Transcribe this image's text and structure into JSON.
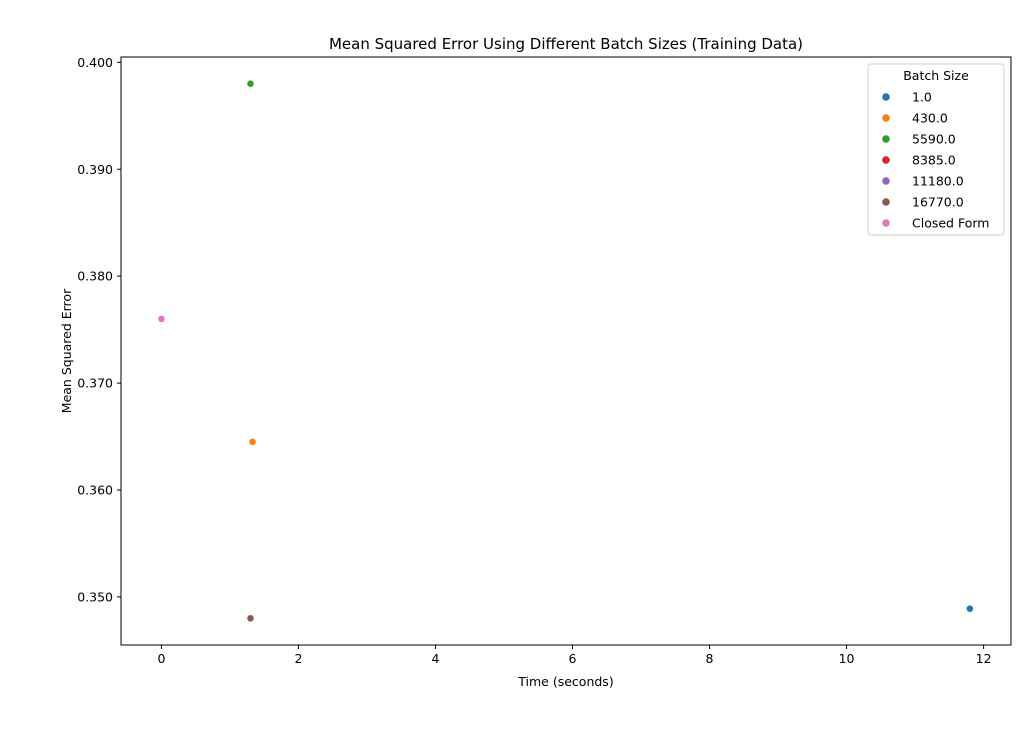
{
  "chart_data": {
    "type": "scatter",
    "title": "Mean Squared Error Using Different Batch Sizes (Training Data)",
    "xlabel": "Time (seconds)",
    "ylabel": "Mean Squared Error",
    "xlim": [
      -0.59,
      12.4
    ],
    "ylim": [
      0.3455,
      0.4005
    ],
    "xticks": [
      0,
      2,
      4,
      6,
      8,
      10,
      12
    ],
    "xtick_labels": [
      "0",
      "2",
      "4",
      "6",
      "8",
      "10",
      "12"
    ],
    "yticks": [
      0.35,
      0.36,
      0.37,
      0.38,
      0.39,
      0.4
    ],
    "ytick_labels": [
      "0.350",
      "0.360",
      "0.370",
      "0.380",
      "0.390",
      "0.400"
    ],
    "grid": false,
    "legend": {
      "title": "Batch Size",
      "placement": "top-right"
    },
    "series": [
      {
        "name": "1.0",
        "color": "#1f77b4",
        "points": [
          {
            "x": 11.8,
            "y": 0.3489
          }
        ]
      },
      {
        "name": "430.0",
        "color": "#ff7f0e",
        "points": [
          {
            "x": 1.33,
            "y": 0.3645
          }
        ]
      },
      {
        "name": "5590.0",
        "color": "#2ca02c",
        "points": [
          {
            "x": 1.3,
            "y": 0.398
          }
        ]
      },
      {
        "name": "8385.0",
        "color": "#d62728",
        "points": [
          {
            "x": 1.3,
            "y": 0.348
          }
        ]
      },
      {
        "name": "11180.0",
        "color": "#9467bd",
        "points": [
          {
            "x": 1.3,
            "y": 0.348
          }
        ]
      },
      {
        "name": "16770.0",
        "color": "#8c564b",
        "points": [
          {
            "x": 1.3,
            "y": 0.348
          }
        ]
      },
      {
        "name": "Closed Form",
        "color": "#e377c2",
        "points": [
          {
            "x": 0.0,
            "y": 0.376
          }
        ]
      }
    ]
  }
}
